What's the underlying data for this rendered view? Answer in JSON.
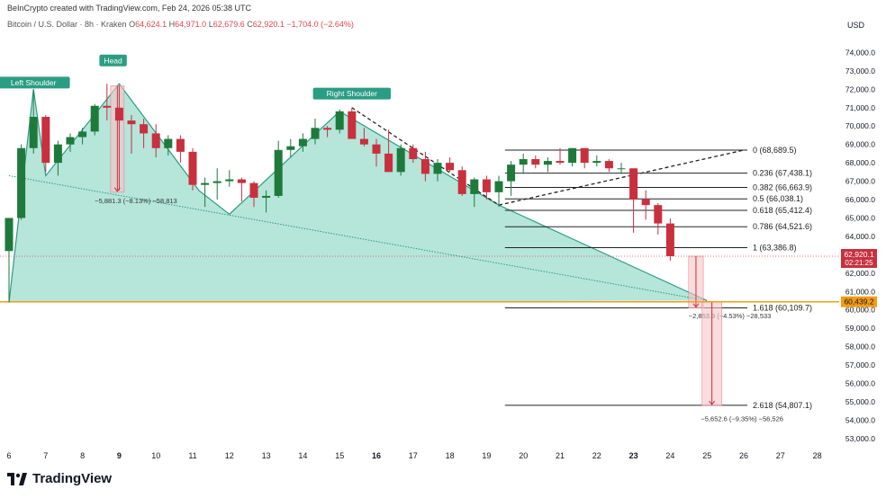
{
  "header": {
    "credit": "BeInCrypto created with TradingView.com, Feb 24, 2026 05:38 UTC",
    "symbol": "Bitcoin / U.S. Dollar · 8h · Kraken",
    "o_label": "O",
    "o_value": "64,624.1",
    "h_label": "H",
    "h_value": "64,971.0",
    "l_label": "L",
    "l_value": "62,679.6",
    "c_label": "C",
    "c_value": "62,920.1",
    "change": "−1,704.0 (−2.64%)"
  },
  "brand": {
    "name": "TradingView"
  },
  "colors": {
    "up": "#1e7a3a",
    "down": "#c8303e",
    "pattern_fill": "#9ddccd",
    "pattern_line": "#2a9d84",
    "orange_line": "#f39c12",
    "price_badge": "#c8303e"
  },
  "chart_data": {
    "type": "candlestick",
    "currency": "USD",
    "ylim": [
      52600,
      75000
    ],
    "y_ticks": [
      "74,000.0",
      "73,000.0",
      "72,000.0",
      "71,000.0",
      "70,000.0",
      "69,000.0",
      "68,000.0",
      "67,000.0",
      "66,000.0",
      "65,000.0",
      "64,000.0",
      "63,000.0",
      "62,000.0",
      "61,000.0",
      "60,000.0",
      "59,000.0",
      "58,000.0",
      "57,000.0",
      "56,000.0",
      "55,000.0",
      "54,000.0",
      "53,000.0"
    ],
    "y_tick_values": [
      74000,
      73000,
      72000,
      71000,
      70000,
      69000,
      68000,
      67000,
      66000,
      65000,
      64000,
      63000,
      62000,
      61000,
      60000,
      59000,
      58000,
      57000,
      56000,
      55000,
      54000,
      53000
    ],
    "x_ticks": [
      {
        "label": "6",
        "x": 0,
        "bold": false
      },
      {
        "label": "7",
        "x": 3,
        "bold": false
      },
      {
        "label": "8",
        "x": 6,
        "bold": false
      },
      {
        "label": "9",
        "x": 9,
        "bold": true
      },
      {
        "label": "10",
        "x": 12,
        "bold": false
      },
      {
        "label": "11",
        "x": 15,
        "bold": false
      },
      {
        "label": "12",
        "x": 18,
        "bold": false
      },
      {
        "label": "13",
        "x": 21,
        "bold": false
      },
      {
        "label": "14",
        "x": 24,
        "bold": false
      },
      {
        "label": "15",
        "x": 27,
        "bold": false
      },
      {
        "label": "16",
        "x": 30,
        "bold": true
      },
      {
        "label": "17",
        "x": 33,
        "bold": false
      },
      {
        "label": "18",
        "x": 36,
        "bold": false
      },
      {
        "label": "19",
        "x": 39,
        "bold": false
      },
      {
        "label": "20",
        "x": 42,
        "bold": false
      },
      {
        "label": "21",
        "x": 45,
        "bold": false
      },
      {
        "label": "22",
        "x": 48,
        "bold": false
      },
      {
        "label": "23",
        "x": 51,
        "bold": true
      },
      {
        "label": "24",
        "x": 54,
        "bold": false
      },
      {
        "label": "25",
        "x": 57,
        "bold": false
      },
      {
        "label": "26",
        "x": 60,
        "bold": false
      },
      {
        "label": "27",
        "x": 63,
        "bold": false
      },
      {
        "label": "28",
        "x": 66,
        "bold": false
      }
    ],
    "x_range": [
      0,
      69
    ],
    "candles": [
      {
        "x": 0,
        "o": 63200,
        "h": 65000,
        "l": 60400,
        "c": 65000
      },
      {
        "x": 1,
        "o": 65000,
        "h": 69000,
        "l": 64900,
        "c": 68800
      },
      {
        "x": 2,
        "o": 68800,
        "h": 72000,
        "l": 68500,
        "c": 70500
      },
      {
        "x": 3,
        "o": 70500,
        "h": 70600,
        "l": 67500,
        "c": 68000
      },
      {
        "x": 4,
        "o": 68000,
        "h": 69200,
        "l": 67300,
        "c": 69000
      },
      {
        "x": 5,
        "o": 69000,
        "h": 69600,
        "l": 68600,
        "c": 69400
      },
      {
        "x": 6,
        "o": 69400,
        "h": 69900,
        "l": 69000,
        "c": 69700
      },
      {
        "x": 7,
        "o": 69700,
        "h": 71200,
        "l": 69500,
        "c": 71100
      },
      {
        "x": 8,
        "o": 71100,
        "h": 72300,
        "l": 70300,
        "c": 71000
      },
      {
        "x": 9,
        "o": 71000,
        "h": 72200,
        "l": 66500,
        "c": 70300
      },
      {
        "x": 10,
        "o": 70300,
        "h": 70600,
        "l": 68500,
        "c": 70100
      },
      {
        "x": 11,
        "o": 70100,
        "h": 70400,
        "l": 68800,
        "c": 69600
      },
      {
        "x": 12,
        "o": 69600,
        "h": 70100,
        "l": 68300,
        "c": 68800
      },
      {
        "x": 13,
        "o": 68800,
        "h": 69500,
        "l": 68400,
        "c": 69300
      },
      {
        "x": 14,
        "o": 69300,
        "h": 69500,
        "l": 68000,
        "c": 68600
      },
      {
        "x": 15,
        "o": 68600,
        "h": 68800,
        "l": 66500,
        "c": 66800
      },
      {
        "x": 16,
        "o": 66800,
        "h": 67200,
        "l": 65600,
        "c": 66900
      },
      {
        "x": 17,
        "o": 66900,
        "h": 67700,
        "l": 66000,
        "c": 67000
      },
      {
        "x": 18,
        "o": 67000,
        "h": 67600,
        "l": 66700,
        "c": 67100
      },
      {
        "x": 19,
        "o": 67100,
        "h": 67200,
        "l": 65900,
        "c": 66900
      },
      {
        "x": 20,
        "o": 66900,
        "h": 67000,
        "l": 65600,
        "c": 66100
      },
      {
        "x": 21,
        "o": 66100,
        "h": 66500,
        "l": 65300,
        "c": 66200
      },
      {
        "x": 22,
        "o": 66200,
        "h": 69200,
        "l": 66100,
        "c": 68700
      },
      {
        "x": 23,
        "o": 68700,
        "h": 69300,
        "l": 68300,
        "c": 68900
      },
      {
        "x": 24,
        "o": 68900,
        "h": 69600,
        "l": 68600,
        "c": 69300
      },
      {
        "x": 25,
        "o": 69300,
        "h": 70400,
        "l": 69000,
        "c": 69900
      },
      {
        "x": 26,
        "o": 69900,
        "h": 70000,
        "l": 69400,
        "c": 69800
      },
      {
        "x": 27,
        "o": 69800,
        "h": 70900,
        "l": 69600,
        "c": 70800
      },
      {
        "x": 28,
        "o": 70800,
        "h": 71000,
        "l": 69400,
        "c": 69300
      },
      {
        "x": 29,
        "o": 69300,
        "h": 69900,
        "l": 68900,
        "c": 69000
      },
      {
        "x": 30,
        "o": 69000,
        "h": 69300,
        "l": 67800,
        "c": 68500
      },
      {
        "x": 31,
        "o": 68500,
        "h": 69800,
        "l": 67500,
        "c": 67500
      },
      {
        "x": 32,
        "o": 67500,
        "h": 69000,
        "l": 67300,
        "c": 68800
      },
      {
        "x": 33,
        "o": 68800,
        "h": 69000,
        "l": 68000,
        "c": 68200
      },
      {
        "x": 34,
        "o": 68200,
        "h": 68600,
        "l": 67000,
        "c": 67400
      },
      {
        "x": 35,
        "o": 67400,
        "h": 68200,
        "l": 67000,
        "c": 68000
      },
      {
        "x": 36,
        "o": 68000,
        "h": 68300,
        "l": 67500,
        "c": 67600
      },
      {
        "x": 37,
        "o": 67600,
        "h": 67800,
        "l": 66200,
        "c": 66300
      },
      {
        "x": 38,
        "o": 66300,
        "h": 67200,
        "l": 65600,
        "c": 67100
      },
      {
        "x": 39,
        "o": 67100,
        "h": 67300,
        "l": 66000,
        "c": 66400
      },
      {
        "x": 40,
        "o": 66400,
        "h": 67300,
        "l": 65600,
        "c": 67000
      },
      {
        "x": 41,
        "o": 67000,
        "h": 68100,
        "l": 66200,
        "c": 67900
      },
      {
        "x": 42,
        "o": 67900,
        "h": 68500,
        "l": 67400,
        "c": 68200
      },
      {
        "x": 43,
        "o": 68200,
        "h": 68400,
        "l": 67700,
        "c": 67900
      },
      {
        "x": 44,
        "o": 67900,
        "h": 68300,
        "l": 67500,
        "c": 68100
      },
      {
        "x": 45,
        "o": 68100,
        "h": 68800,
        "l": 67900,
        "c": 68000
      },
      {
        "x": 46,
        "o": 68000,
        "h": 68800,
        "l": 67800,
        "c": 68800
      },
      {
        "x": 47,
        "o": 68800,
        "h": 68800,
        "l": 67700,
        "c": 68000
      },
      {
        "x": 48,
        "o": 68000,
        "h": 68400,
        "l": 67800,
        "c": 68100
      },
      {
        "x": 49,
        "o": 68100,
        "h": 68200,
        "l": 67500,
        "c": 67700
      },
      {
        "x": 50,
        "o": 67700,
        "h": 68000,
        "l": 67400,
        "c": 67700
      },
      {
        "x": 51,
        "o": 67700,
        "h": 67700,
        "l": 64200,
        "c": 66000
      },
      {
        "x": 52,
        "o": 66000,
        "h": 66500,
        "l": 64900,
        "c": 65700
      },
      {
        "x": 53,
        "o": 65700,
        "h": 65800,
        "l": 64100,
        "c": 64700
      },
      {
        "x": 54,
        "o": 64700,
        "h": 64971,
        "l": 62680,
        "c": 62920
      }
    ],
    "pattern_polygon": [
      [
        0,
        60400
      ],
      [
        2,
        72000
      ],
      [
        3,
        67300
      ],
      [
        9,
        72300
      ],
      [
        15.5,
        66500
      ],
      [
        18,
        65200
      ],
      [
        27,
        70800
      ],
      [
        40,
        65700
      ],
      [
        57,
        60500
      ]
    ],
    "pattern_outline": [
      [
        0,
        60400
      ],
      [
        2,
        72000
      ],
      [
        3,
        67300
      ],
      [
        9,
        72300
      ],
      [
        15.5,
        66500
      ],
      [
        18,
        65200
      ],
      [
        27,
        70800
      ],
      [
        40,
        65700
      ],
      [
        57,
        60500
      ]
    ],
    "neckline": [
      [
        0,
        67300
      ],
      [
        57,
        60500
      ]
    ],
    "dashed_trend": [
      [
        28,
        71000
      ],
      [
        40,
        65700
      ],
      [
        60,
        68689.5
      ]
    ],
    "pattern_labels": [
      {
        "text": "Left Shoulder",
        "x": 2,
        "y": 72000
      },
      {
        "text": "Head",
        "x": 8.5,
        "y": 73200
      },
      {
        "text": "Right Shoulder",
        "x": 28,
        "y": 71400
      }
    ],
    "fib_levels": [
      {
        "label": "0 (68,689.5)",
        "value": 68689.5
      },
      {
        "label": "0.236 (67,438.1)",
        "value": 67438.1
      },
      {
        "label": "0.382 (66,663.9)",
        "value": 66663.9
      },
      {
        "label": "0.5 (66,038.1)",
        "value": 66038.1
      },
      {
        "label": "0.618 (65,412.4)",
        "value": 65412.4
      },
      {
        "label": "0.786 (64,521.6)",
        "value": 64521.6
      },
      {
        "label": "1 (63,386.8)",
        "value": 63386.8
      },
      {
        "label": "1.618 (60,109.7)",
        "value": 60109.7
      },
      {
        "label": "2.618 (54,807.1)",
        "value": 54807.1
      }
    ],
    "fib_x_range": [
      40.5,
      60
    ],
    "measure_boxes": [
      {
        "x0": 8.3,
        "x1": 9.4,
        "top": 72200,
        "bottom": 66400,
        "label": "−5,881.3 (−8.13%) −58,813",
        "label_x": 7,
        "label_y": 65950
      },
      {
        "x0": 55.5,
        "x1": 56.7,
        "top": 62920,
        "bottom": 60100,
        "label": "−2,853.3 (−4.53%) −28,533",
        "label_x": 55.5,
        "label_y": 59700
      },
      {
        "x0": 56.6,
        "x1": 58.2,
        "top": 60450,
        "bottom": 54800,
        "label": "−5,652.6 (−9.35%) −56,526",
        "label_x": 56.5,
        "label_y": 54100
      }
    ],
    "current_price": {
      "value": 62920.1,
      "label": "62,920.1",
      "timer": "02:21:25"
    },
    "orange_level": {
      "value": 60439.2,
      "label": "60,439.2"
    }
  }
}
